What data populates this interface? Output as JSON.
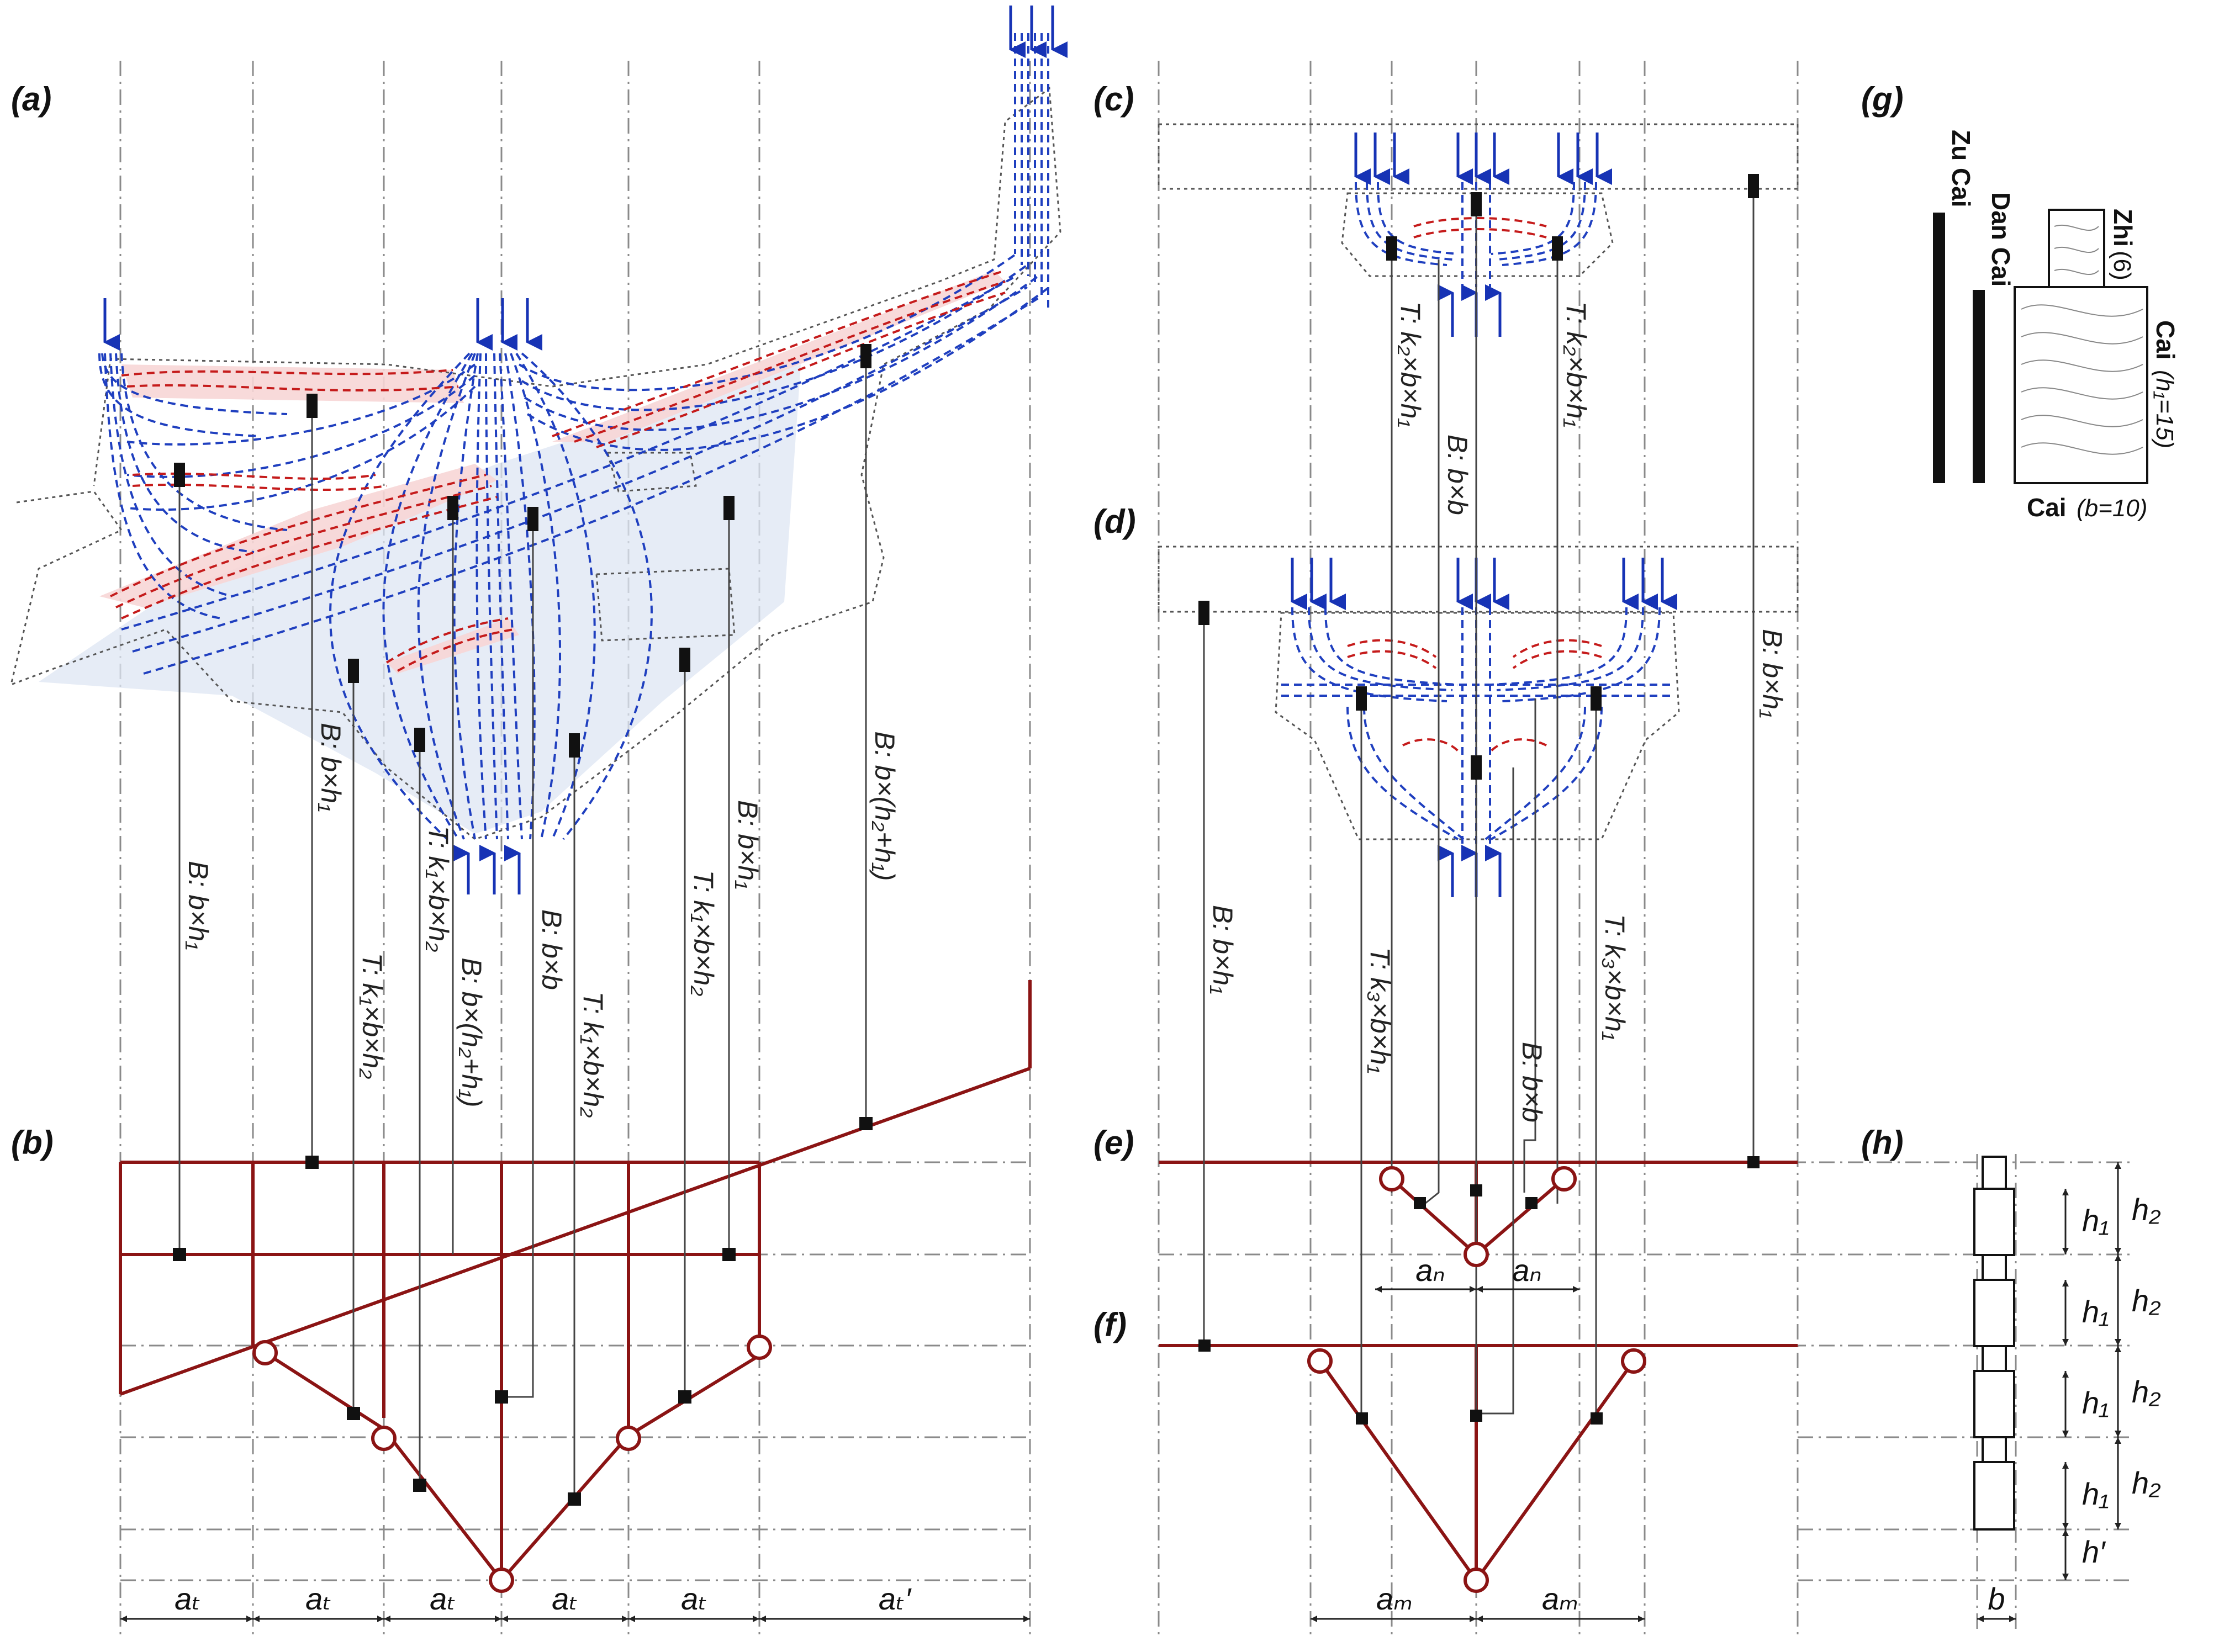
{
  "panels": {
    "a": "(a)",
    "b": "(b)",
    "c": "(c)",
    "d": "(d)",
    "e": "(e)",
    "f": "(f)",
    "g": "(g)",
    "h": "(h)"
  },
  "panel_a_labels": {
    "b_bh1_left": "B: b×h₁",
    "b_bh1_2": "B: b×h₁",
    "t_k1bh2_1": "T: k₁×b×h₂",
    "t_k1bh2_2": "T: k₁×b×h₂",
    "b_bh2h1_1": "B: b×(h₂+h₁)",
    "b_bb": "B: b×b",
    "t_k1bh2_3": "T: k₁×b×h₂",
    "t_k1bh2_4": "T: k₁×b×h₂",
    "b_bh1_3": "B: b×h₁",
    "b_bh2h1_2": "B: b×(h₂+h₁)"
  },
  "panel_c_labels": {
    "t_left": "T: k₂×b×h₁",
    "b_bb": "B: b×b",
    "t_right": "T: k₂×b×h₁",
    "b_bh1_right": "B: b×h₁"
  },
  "panel_d_labels": {
    "b_bh1_left": "B: b×h₁",
    "t_left": "T: k₃×b×h₁",
    "b_bb": "B: b×b",
    "t_right": "T: k₃×b×h₁"
  },
  "panel_g": {
    "zu_cai": "Zu Cai",
    "dan_cai": "Dan Cai",
    "zhi": "Zhi",
    "zhi_val": "(6)",
    "cai_h": "Cai",
    "cai_h_val": "(h₁=15)",
    "cai_b": "Cai",
    "cai_b_val": "(b=10)"
  },
  "dims": {
    "a_t": "aₜ",
    "a_t_prime": "aₜ′",
    "a_n": "aₙ",
    "a_m": "aₘ",
    "h1": "h₁",
    "h2": "h₂",
    "h_prime": "h′",
    "b": "b"
  },
  "colors": {
    "flow_blue": "#1f3fbf",
    "flow_red": "#c51b1b",
    "truss_red": "#8b1414",
    "node_black": "#111111",
    "fill_blue": "#dde6f3",
    "fill_red": "#f7d6d6"
  }
}
